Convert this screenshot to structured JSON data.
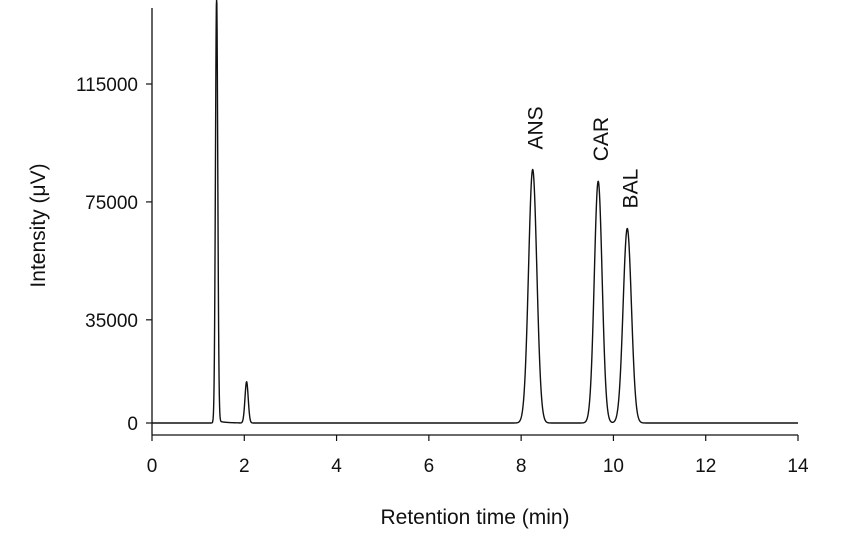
{
  "chart_data": {
    "type": "line",
    "title": "",
    "xlabel": "Retention time (min)",
    "ylabel": "Intensity (μV)",
    "xlim": [
      0,
      14
    ],
    "ylim": [
      -5000,
      140000
    ],
    "x_ticks": [
      0,
      2,
      4,
      6,
      8,
      10,
      12,
      14
    ],
    "x_tick_labels": [
      "0",
      "2",
      "4",
      "6",
      "8",
      "10",
      "12",
      "14"
    ],
    "y_ticks": [
      0,
      35000,
      75000,
      115000
    ],
    "y_tick_labels": [
      "0",
      "35000",
      "75000",
      "115000"
    ],
    "grid": false,
    "legend": "none",
    "series": [
      {
        "peaks": [
          {
            "x": 1.4,
            "y": 145000,
            "width": 0.025
          },
          {
            "x": 2.05,
            "y": 14000,
            "width": 0.035
          },
          {
            "x": 8.25,
            "y": 86000,
            "width": 0.09
          },
          {
            "x": 9.67,
            "y": 82000,
            "width": 0.085
          },
          {
            "x": 10.3,
            "y": 66000,
            "width": 0.09
          }
        ],
        "values_sampled": [
          [
            0.0,
            0
          ],
          [
            1.3,
            0
          ],
          [
            1.4,
            145000
          ],
          [
            1.5,
            800
          ],
          [
            2.0,
            3000
          ],
          [
            2.05,
            14000
          ],
          [
            2.1,
            3000
          ],
          [
            2.5,
            0
          ],
          [
            7.8,
            0
          ],
          [
            8.25,
            86000
          ],
          [
            8.7,
            0
          ],
          [
            9.3,
            1000
          ],
          [
            9.67,
            82000
          ],
          [
            10.0,
            6000
          ],
          [
            10.3,
            66000
          ],
          [
            10.7,
            0
          ],
          [
            14.0,
            0
          ]
        ],
        "color": "#111111"
      }
    ],
    "annotations": [
      {
        "text": "ANS",
        "x": 8.25
      },
      {
        "text": "CAR",
        "x": 9.67
      },
      {
        "text": "BAL",
        "x": 10.3
      }
    ]
  }
}
